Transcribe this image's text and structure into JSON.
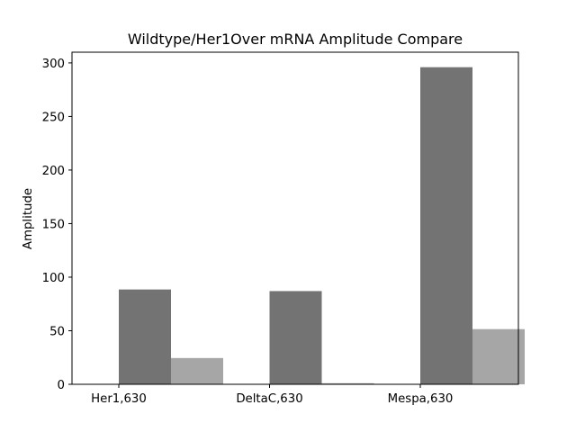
{
  "chart_data": {
    "type": "bar",
    "title": "Wildtype/Her1Over mRNA Amplitude Compare",
    "xlabel": "",
    "ylabel": "Amplitude",
    "categories": [
      "Her1,630",
      "DeltaC,630",
      "Mespa,630"
    ],
    "series": [
      {
        "values": [
          88.5,
          87,
          296
        ],
        "color": "#737373"
      },
      {
        "values": [
          24.5,
          1,
          51.5
        ],
        "color": "#a6a6a6"
      }
    ],
    "ylim": [
      0,
      310
    ],
    "yticks": [
      0,
      50,
      100,
      150,
      200,
      250,
      300
    ],
    "grid": false,
    "legend": "none"
  }
}
